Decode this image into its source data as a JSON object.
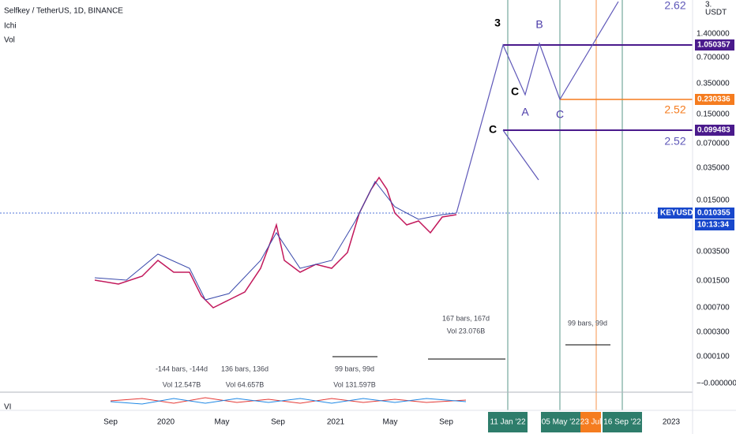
{
  "header": {
    "symbol": "Selfkey / TetherUS, 1D, BINANCE",
    "indicators": [
      "Ichi",
      "Vol"
    ]
  },
  "price_axis": {
    "top": "3.",
    "unit": "USDT",
    "labels": [
      "1.400000",
      "0.700000",
      "0.350000",
      "0.150000",
      "0.070000",
      "0.035000",
      "0.015000",
      "0.003500",
      "0.001500",
      "0.000700",
      "0.000300",
      "0.000100",
      "−-0.000000"
    ]
  },
  "price_tags": [
    {
      "text": "1.050357",
      "color": "#4a1a8c"
    },
    {
      "text": "0.230336",
      "color": "#f57c1f"
    },
    {
      "text": "0.099483",
      "color": "#4a1a8c"
    },
    {
      "text": "KEYUSDT",
      "color": "#1848cc"
    },
    {
      "text": "0.010355",
      "color": "#1848cc"
    },
    {
      "text": "10:13:34",
      "color": "#1848cc"
    }
  ],
  "time_axis": {
    "labels": [
      "Sep",
      "2020",
      "May",
      "Sep",
      "2021",
      "May",
      "Sep",
      "2023"
    ],
    "highlights": [
      {
        "text": "11 Jan '22",
        "color": "#2e7d6b"
      },
      {
        "text": "05 May '22",
        "color": "#2e7d6b"
      },
      {
        "text": "23 Jul",
        "color": "#f57c1f"
      },
      {
        "text": "16 Sep '22",
        "color": "#2e7d6b"
      }
    ]
  },
  "wave_labels": [
    "3",
    "B",
    "C",
    "A",
    "C",
    "C"
  ],
  "fib_labels": [
    "2.62",
    "2.52",
    "2.52"
  ],
  "measurements": [
    "-144 bars, -144d",
    "Vol 12.547B",
    "136 bars, 136d",
    "Vol 64.657B",
    "99 bars, 99d",
    "Vol 131.597B",
    "167 bars, 167d",
    "Vol 23.076B",
    "99 bars, 99d"
  ],
  "pane_label": "VI"
}
